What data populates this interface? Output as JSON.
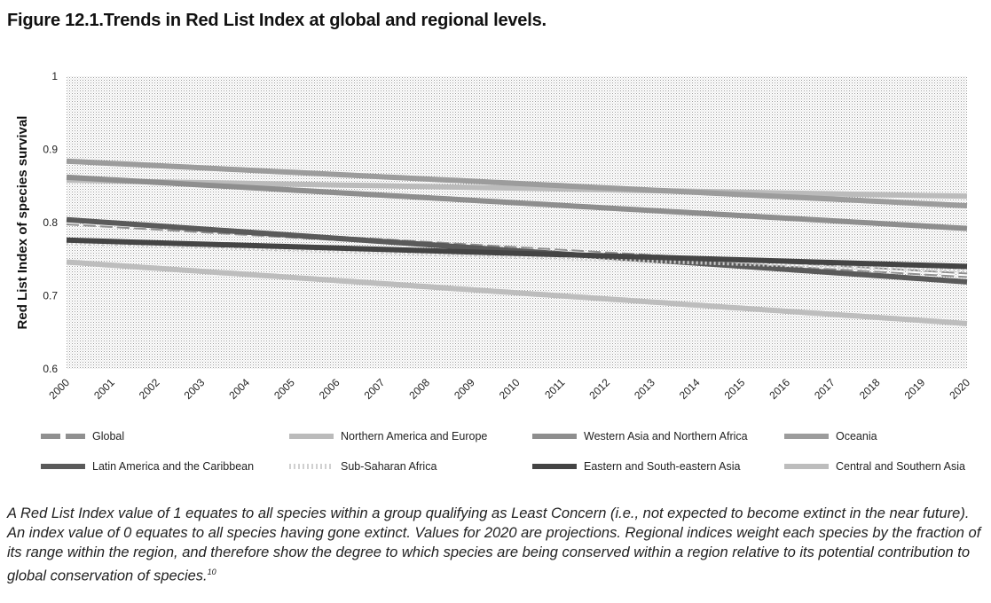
{
  "figure_title": "Figure 12.1.Trends in Red List Index at global and regional levels.",
  "caption": "A Red List Index value of 1 equates to all species within a group qualifying as Least Concern (i.e., not expected to become extinct in the near future). An index value of 0 equates to all species having gone extinct. Values for 2020 are projections. Regional indices weight each species by the fraction of its range within the region, and therefore show the degree to which species are being conserved within a region relative to its potential contribution to global conservation of species.",
  "caption_footnote": "10",
  "chart_data": {
    "type": "line",
    "title": "Figure 12.1.Trends in Red List Index at global and regional levels.",
    "xlabel": "",
    "ylabel": "Red List Index of species survival",
    "ylim": [
      0.6,
      1.0
    ],
    "yticks": [
      "0.6",
      "0.7",
      "0.8",
      "0.9",
      "1"
    ],
    "x": [
      "2000",
      "2001",
      "2002",
      "2003",
      "2004",
      "2005",
      "2006",
      "2007",
      "2008",
      "2009",
      "2010",
      "2011",
      "2012",
      "2013",
      "2014",
      "2015",
      "2016",
      "2017",
      "2018",
      "2019",
      "2020"
    ],
    "grid": true,
    "legend_position": "bottom",
    "series": [
      {
        "name": "Global",
        "start": 0.8,
        "end": 0.728,
        "color": "#909090",
        "style": "dashed"
      },
      {
        "name": "Northern America and Europe",
        "start": 0.858,
        "end": 0.836,
        "color": "#bbbbbb",
        "style": "solid"
      },
      {
        "name": "Western Asia and Northern Africa",
        "start": 0.862,
        "end": 0.792,
        "color": "#8e8e8e",
        "style": "solid"
      },
      {
        "name": "Oceania",
        "start": 0.884,
        "end": 0.823,
        "color": "#9c9c9c",
        "style": "solid"
      },
      {
        "name": "Latin America and the Caribbean",
        "start": 0.804,
        "end": 0.719,
        "color": "#5a5a5a",
        "style": "solid"
      },
      {
        "name": "Sub-Saharan Africa",
        "start": 0.773,
        "end": 0.735,
        "color": "#d0d0d0",
        "style": "dotted"
      },
      {
        "name": "Eastern and South-eastern Asia",
        "start": 0.776,
        "end": 0.74,
        "color": "#444444",
        "style": "solid"
      },
      {
        "name": "Central and Southern Asia",
        "start": 0.746,
        "end": 0.662,
        "color": "#bdbdbd",
        "style": "solid"
      }
    ]
  }
}
